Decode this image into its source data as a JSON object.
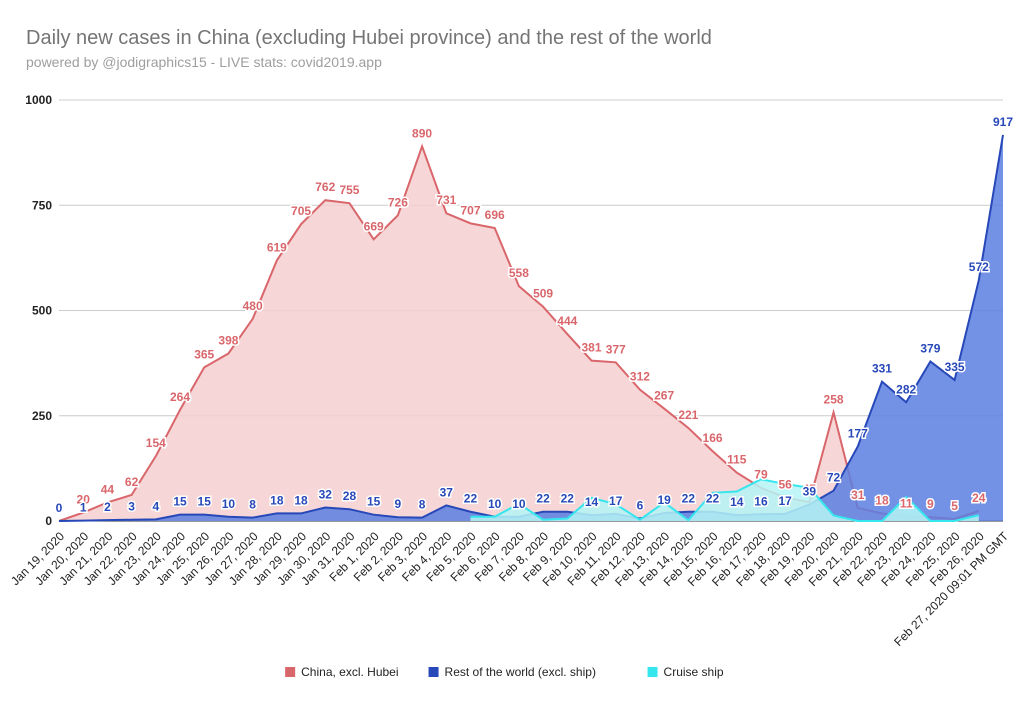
{
  "chart_data": {
    "type": "area",
    "title": "Daily new cases in China (excluding Hubei province) and the rest of the world",
    "subtitle": "powered by @jodigraphics15 - LIVE stats: covid2019.app",
    "categories": [
      "Jan 19, 2020",
      "Jan 20, 2020",
      "Jan 21, 2020",
      "Jan 22, 2020",
      "Jan 23, 2020",
      "Jan 24, 2020",
      "Jan 25, 2020",
      "Jan 26, 2020",
      "Jan 27, 2020",
      "Jan 28, 2020",
      "Jan 29, 2020",
      "Jan 30, 2020",
      "Jan 31, 2020",
      "Feb 1, 2020",
      "Feb 2, 2020",
      "Feb 3, 2020",
      "Feb 4, 2020",
      "Feb 5, 2020",
      "Feb 6, 2020",
      "Feb 7, 2020",
      "Feb 8, 2020",
      "Feb 9, 2020",
      "Feb 10, 2020",
      "Feb 11, 2020",
      "Feb 12, 2020",
      "Feb 13, 2020",
      "Feb 14, 2020",
      "Feb 15, 2020",
      "Feb 16, 2020",
      "Feb 17, 2020",
      "Feb 18, 2020",
      "Feb 19, 2020",
      "Feb 20, 2020",
      "Feb 21, 2020",
      "Feb 22, 2020",
      "Feb 23, 2020",
      "Feb 24, 2020",
      "Feb 25, 2020",
      "Feb 26, 2020",
      "Feb 27, 2020 09:01 PM GMT"
    ],
    "series": [
      {
        "name": "China, excl. Hubei",
        "color": "#d9666b",
        "fill": "#f4cfcf",
        "data_labels": true,
        "values": [
          0,
          20,
          44,
          62,
          154,
          264,
          365,
          398,
          480,
          619,
          705,
          762,
          755,
          669,
          726,
          890,
          731,
          707,
          696,
          558,
          509,
          444,
          381,
          377,
          312,
          267,
          221,
          166,
          115,
          79,
          56,
          45,
          258,
          31,
          18,
          11,
          9,
          5,
          24,
          null
        ]
      },
      {
        "name": "Rest of the world (excl. ship)",
        "color": "#2748b8",
        "fill": "#5b7fe0",
        "data_labels": true,
        "values": [
          0,
          1,
          2,
          3,
          4,
          15,
          15,
          10,
          8,
          18,
          18,
          32,
          28,
          15,
          9,
          8,
          37,
          22,
          10,
          10,
          22,
          22,
          14,
          17,
          6,
          19,
          22,
          22,
          14,
          16,
          17,
          39,
          72,
          177,
          331,
          282,
          379,
          335,
          572,
          917
        ]
      },
      {
        "name": "Cruise ship",
        "color": "#35e6ee",
        "fill": "#b5f4f6",
        "data_labels": false,
        "values": [
          null,
          null,
          null,
          null,
          null,
          null,
          null,
          null,
          null,
          null,
          null,
          null,
          null,
          null,
          null,
          null,
          null,
          10,
          10,
          41,
          3,
          6,
          55,
          40,
          3,
          44,
          2,
          67,
          70,
          99,
          88,
          79,
          13,
          0,
          0,
          57,
          0,
          0,
          14,
          null
        ]
      }
    ],
    "ylim": [
      0,
      1000
    ],
    "yticks": [
      0,
      250,
      500,
      750,
      1000
    ],
    "grid": true,
    "legend": "bottom"
  }
}
